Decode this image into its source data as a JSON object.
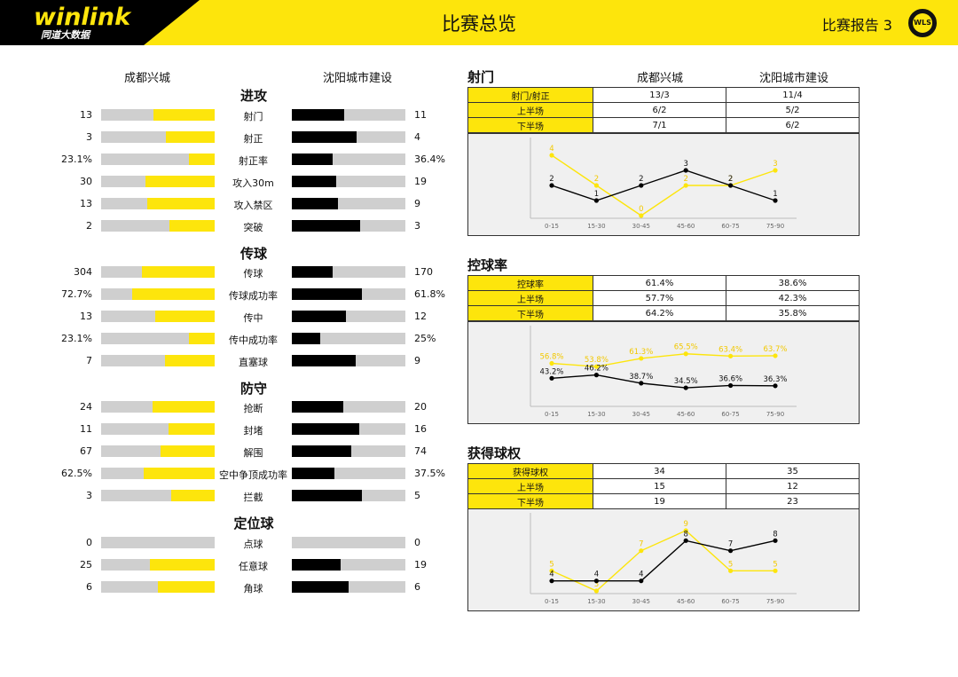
{
  "header": {
    "logo_text": "winlink",
    "logo_sub": "同道大数据",
    "title": "比赛总览",
    "report": "比赛报告 3",
    "badge": "WLS"
  },
  "teams": {
    "home": "成都兴城",
    "away": "沈阳城市建设"
  },
  "sections": [
    {
      "title": "进攻",
      "rows": [
        {
          "label": "射门",
          "home": "13",
          "away": "11",
          "home_frac": 0.54,
          "away_frac": 0.46
        },
        {
          "label": "射正",
          "home": "3",
          "away": "4",
          "home_frac": 0.43,
          "away_frac": 0.57
        },
        {
          "label": "射正率",
          "home": "23.1%",
          "away": "36.4%",
          "home_frac": 0.23,
          "away_frac": 0.36
        },
        {
          "label": "攻入30m",
          "home": "30",
          "away": "19",
          "home_frac": 0.61,
          "away_frac": 0.39
        },
        {
          "label": "攻入禁区",
          "home": "13",
          "away": "9",
          "home_frac": 0.59,
          "away_frac": 0.41
        },
        {
          "label": "突破",
          "home": "2",
          "away": "3",
          "home_frac": 0.4,
          "away_frac": 0.6
        }
      ]
    },
    {
      "title": "传球",
      "rows": [
        {
          "label": "传球",
          "home": "304",
          "away": "170",
          "home_frac": 0.64,
          "away_frac": 0.36
        },
        {
          "label": "传球成功率",
          "home": "72.7%",
          "away": "61.8%",
          "home_frac": 0.727,
          "away_frac": 0.618
        },
        {
          "label": "传中",
          "home": "13",
          "away": "12",
          "home_frac": 0.52,
          "away_frac": 0.48
        },
        {
          "label": "传中成功率",
          "home": "23.1%",
          "away": "25%",
          "home_frac": 0.23,
          "away_frac": 0.25
        },
        {
          "label": "直塞球",
          "home": "7",
          "away": "9",
          "home_frac": 0.44,
          "away_frac": 0.56
        }
      ]
    },
    {
      "title": "防守",
      "rows": [
        {
          "label": "抢断",
          "home": "24",
          "away": "20",
          "home_frac": 0.55,
          "away_frac": 0.45
        },
        {
          "label": "封堵",
          "home": "11",
          "away": "16",
          "home_frac": 0.41,
          "away_frac": 0.59
        },
        {
          "label": "解围",
          "home": "67",
          "away": "74",
          "home_frac": 0.48,
          "away_frac": 0.52
        },
        {
          "label": "空中争顶成功率",
          "home": "62.5%",
          "away": "37.5%",
          "home_frac": 0.625,
          "away_frac": 0.375
        },
        {
          "label": "拦截",
          "home": "3",
          "away": "5",
          "home_frac": 0.38,
          "away_frac": 0.62
        }
      ]
    },
    {
      "title": "定位球",
      "rows": [
        {
          "label": "点球",
          "home": "0",
          "away": "0",
          "home_frac": 0,
          "away_frac": 0
        },
        {
          "label": "任意球",
          "home": "25",
          "away": "19",
          "home_frac": 0.57,
          "away_frac": 0.43
        },
        {
          "label": "角球",
          "home": "6",
          "away": "6",
          "home_frac": 0.5,
          "away_frac": 0.5
        }
      ]
    }
  ],
  "panels": [
    {
      "title": "射门",
      "rows": [
        {
          "k": "射门/射正",
          "home": "13/3",
          "away": "11/4"
        },
        {
          "k": "上半场",
          "home": "6/2",
          "away": "5/2"
        },
        {
          "k": "下半场",
          "home": "7/1",
          "away": "6/2"
        }
      ],
      "chart": {
        "x": [
          "0-15",
          "15-30",
          "30-45",
          "45-60",
          "60-75",
          "75-90"
        ],
        "home_labels": [
          "4",
          "2",
          "0",
          "2",
          "2",
          "3"
        ],
        "away_labels": [
          "2",
          "1",
          "2",
          "3",
          "2",
          "1"
        ],
        "home": [
          4,
          2,
          0,
          2,
          2,
          3
        ],
        "away": [
          2,
          1,
          2,
          3,
          2,
          1
        ],
        "ylim": [
          0,
          4
        ]
      }
    },
    {
      "title": "控球率",
      "rows": [
        {
          "k": "控球率",
          "home": "61.4%",
          "away": "38.6%"
        },
        {
          "k": "上半场",
          "home": "57.7%",
          "away": "42.3%"
        },
        {
          "k": "下半场",
          "home": "64.2%",
          "away": "35.8%"
        }
      ],
      "chart": {
        "x": [
          "0-15",
          "15-30",
          "30-45",
          "45-60",
          "60-75",
          "75-90"
        ],
        "home_labels": [
          "56.8%",
          "53.8%",
          "61.3%",
          "65.5%",
          "63.4%",
          "63.7%"
        ],
        "away_labels": [
          "43.2%",
          "46.2%",
          "38.7%",
          "34.5%",
          "36.6%",
          "36.3%"
        ],
        "home": [
          56.8,
          53.8,
          61.3,
          65.5,
          63.4,
          63.7
        ],
        "away": [
          43.2,
          46.2,
          38.7,
          34.5,
          36.6,
          36.3
        ],
        "ylim": [
          20,
          75
        ]
      }
    },
    {
      "title": "获得球权",
      "rows": [
        {
          "k": "获得球权",
          "home": "34",
          "away": "35"
        },
        {
          "k": "上半场",
          "home": "15",
          "away": "12"
        },
        {
          "k": "下半场",
          "home": "19",
          "away": "23"
        }
      ],
      "chart": {
        "x": [
          "0-15",
          "15-30",
          "30-45",
          "45-60",
          "60-75",
          "75-90"
        ],
        "home_labels": [
          "5",
          "3",
          "7",
          "9",
          "5",
          "5"
        ],
        "away_labels": [
          "4",
          "4",
          "4",
          "8",
          "7",
          "8"
        ],
        "home": [
          5,
          3,
          7,
          9,
          5,
          5
        ],
        "away": [
          4,
          4,
          4,
          8,
          7,
          8
        ],
        "ylim": [
          3,
          9
        ]
      }
    }
  ],
  "chart_data": [
    {
      "type": "line",
      "x": [
        "0-15",
        "15-30",
        "30-45",
        "45-60",
        "60-75",
        "75-90"
      ],
      "series": [
        {
          "name": "成都兴城",
          "values": [
            4,
            2,
            0,
            2,
            2,
            3
          ]
        },
        {
          "name": "沈阳城市建设",
          "values": [
            2,
            1,
            2,
            3,
            2,
            1
          ]
        }
      ],
      "title": "射门",
      "xlabel": "",
      "ylabel": ""
    },
    {
      "type": "line",
      "x": [
        "0-15",
        "15-30",
        "30-45",
        "45-60",
        "60-75",
        "75-90"
      ],
      "series": [
        {
          "name": "成都兴城",
          "values": [
            56.8,
            53.8,
            61.3,
            65.5,
            63.4,
            63.7
          ]
        },
        {
          "name": "沈阳城市建设",
          "values": [
            43.2,
            46.2,
            38.7,
            34.5,
            36.6,
            36.3
          ]
        }
      ],
      "title": "控球率",
      "xlabel": "",
      "ylabel": ""
    },
    {
      "type": "line",
      "x": [
        "0-15",
        "15-30",
        "30-45",
        "45-60",
        "60-75",
        "75-90"
      ],
      "series": [
        {
          "name": "成都兴城",
          "values": [
            5,
            3,
            7,
            9,
            5,
            5
          ]
        },
        {
          "name": "沈阳城市建设",
          "values": [
            4,
            4,
            4,
            8,
            7,
            8
          ]
        }
      ],
      "title": "获得球权",
      "xlabel": "",
      "ylabel": ""
    }
  ],
  "colors": {
    "home": "#fde50c",
    "away": "#000000",
    "neutral": "#cfcfcf",
    "header": "#fde50c"
  }
}
